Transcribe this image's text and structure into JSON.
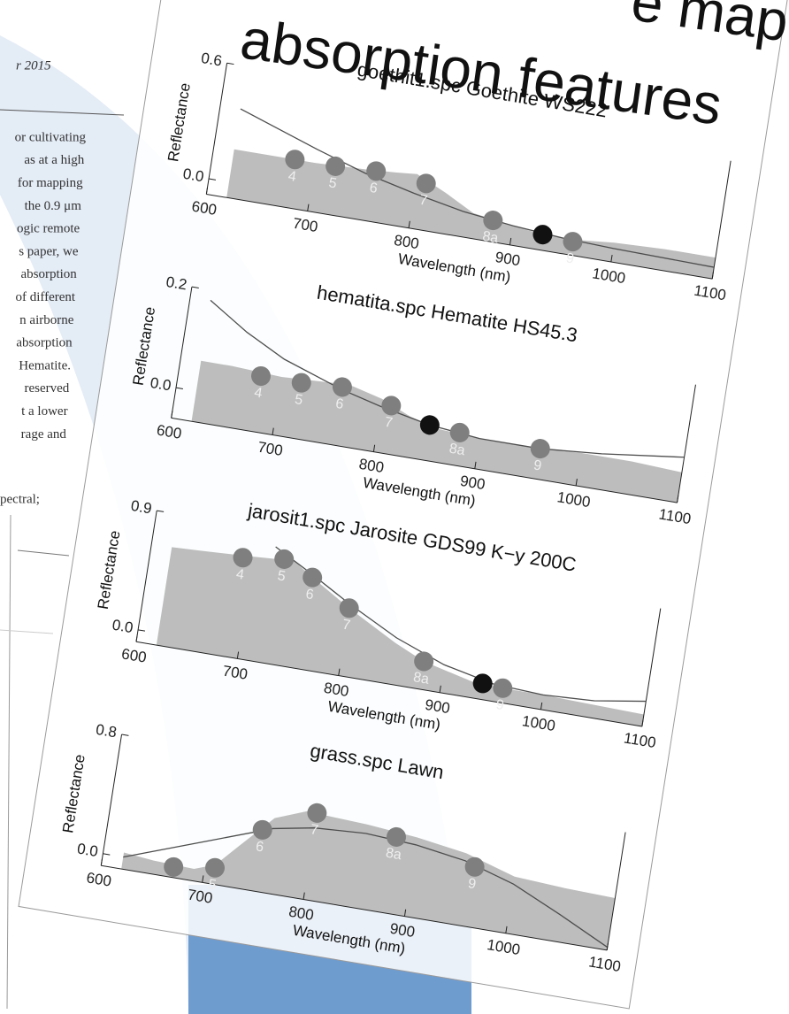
{
  "slide_title": {
    "lines": [
      "e map",
      "absorption features"
    ]
  },
  "paper": {
    "running_head": "r 2015",
    "lines": [
      "or cultivating",
      "as at a high",
      "for mapping",
      "the 0.9 μm",
      "ogic remote",
      "s paper, we",
      "absorption",
      "of different",
      "n airborne",
      "absorption",
      "Hematite.",
      "reserved",
      "t a lower",
      "rage and"
    ],
    "footer_line": "pectral;"
  },
  "chart_data": [
    {
      "type": "area",
      "title": "goethit1.spc Goethite WS222",
      "xlabel": "Wavelength (nm)",
      "ylabel": "Reflectance",
      "xlim": [
        600,
        1100
      ],
      "xticks": [
        600,
        700,
        800,
        900,
        1000,
        1100
      ],
      "ylim": [
        -0.08,
        0.6
      ],
      "yticks": [
        {
          "value": 0,
          "label": "0.0"
        },
        0.6
      ],
      "spectrum": {
        "color": "#bdbdbd",
        "x": [
          620,
          650,
          700,
          750,
          780,
          800,
          830,
          860,
          900,
          930,
          960,
          1000,
          1050,
          1100
        ],
        "values": [
          0.17,
          0.17,
          0.17,
          0.18,
          0.19,
          0.2,
          0.13,
          0.05,
          0.02,
          0.0,
          0.0,
          0.02,
          0.03,
          0.03
        ]
      },
      "fit": {
        "color": "#4d4d4d",
        "x": [
          620,
          660,
          700,
          750,
          800,
          850,
          900,
          950,
          1000,
          1100
        ],
        "values": [
          0.38,
          0.31,
          0.24,
          0.16,
          0.1,
          0.05,
          0.02,
          0.0,
          -0.01,
          -0.02
        ]
      },
      "points": {
        "x": [
          680,
          720,
          760,
          810,
          880,
          930,
          960
        ],
        "values": [
          0.17,
          0.17,
          0.18,
          0.16,
          0.03,
          0.0,
          -0.01
        ],
        "labels": [
          "4",
          "5",
          "6",
          "7",
          "8a",
          null,
          "9"
        ],
        "colors": [
          "#7f7f7f",
          "#7f7f7f",
          "#7f7f7f",
          "#7f7f7f",
          "#7f7f7f",
          "#111111",
          "#7f7f7f"
        ]
      }
    },
    {
      "type": "area",
      "title": "hematita.spc Hematite HS45.3",
      "xlabel": "Wavelength (nm)",
      "ylabel": "Reflectance",
      "xlim": [
        600,
        1100
      ],
      "xticks": [
        600,
        700,
        800,
        900,
        1000,
        1100
      ],
      "ylim": [
        -0.06,
        0.2
      ],
      "yticks": [
        {
          "value": 0,
          "label": "0.0"
        },
        0.2
      ],
      "spectrum": {
        "color": "#bdbdbd",
        "x": [
          620,
          650,
          700,
          750,
          770,
          800,
          830,
          860,
          900,
          950,
          1000,
          1050,
          1100
        ],
        "values": [
          0.06,
          0.06,
          0.055,
          0.06,
          0.06,
          0.045,
          0.02,
          0.005,
          0.0,
          0.0,
          0.005,
          0.005,
          0.0
        ]
      },
      "fit": {
        "color": "#4d4d4d",
        "x": [
          620,
          660,
          700,
          760,
          800,
          850,
          900,
          960,
          1020,
          1100
        ],
        "values": [
          0.18,
          0.13,
          0.09,
          0.05,
          0.03,
          0.01,
          0.0,
          0.0,
          0.01,
          0.03
        ]
      },
      "points": {
        "x": [
          680,
          720,
          760,
          810,
          850,
          880,
          960
        ],
        "values": [
          0.05,
          0.05,
          0.055,
          0.035,
          0.01,
          0.005,
          0.0
        ],
        "labels": [
          "4",
          "5",
          "6",
          "7",
          null,
          "8a",
          "9"
        ],
        "colors": [
          "#7f7f7f",
          "#7f7f7f",
          "#7f7f7f",
          "#7f7f7f",
          "#111111",
          "#7f7f7f",
          "#7f7f7f"
        ]
      }
    },
    {
      "type": "area",
      "title": "jarosit1.spc Jarosite GDS99 K−y 200C",
      "xlabel": "Wavelength (nm)",
      "ylabel": "Reflectance",
      "xlim": [
        600,
        1100
      ],
      "xticks": [
        600,
        700,
        800,
        900,
        1000,
        1100
      ],
      "ylim": [
        -0.09,
        0.9
      ],
      "yticks": [
        {
          "value": 0,
          "label": "0.0"
        },
        0.9
      ],
      "spectrum": {
        "color": "#bdbdbd",
        "x": [
          620,
          650,
          700,
          740,
          760,
          800,
          850,
          880,
          930,
          960,
          1000,
          1050,
          1100
        ],
        "values": [
          0.65,
          0.66,
          0.68,
          0.7,
          0.6,
          0.42,
          0.22,
          0.12,
          0.03,
          0.02,
          0.02,
          0.01,
          0.0
        ]
      },
      "fit": {
        "color": "#4d4d4d",
        "x": [
          720,
          760,
          800,
          850,
          900,
          950,
          1000,
          1050,
          1100
        ],
        "values": [
          0.78,
          0.62,
          0.45,
          0.26,
          0.12,
          0.04,
          0.02,
          0.04,
          0.1
        ]
      },
      "points": {
        "x": [
          690,
          730,
          760,
          800,
          880,
          940,
          960
        ],
        "values": [
          0.66,
          0.7,
          0.6,
          0.42,
          0.12,
          0.03,
          0.02
        ],
        "labels": [
          "4",
          "5",
          "6",
          "7",
          "8a",
          null,
          "9"
        ],
        "colors": [
          "#7f7f7f",
          "#7f7f7f",
          "#7f7f7f",
          "#7f7f7f",
          "#7f7f7f",
          "#111111",
          "#7f7f7f"
        ]
      }
    },
    {
      "type": "area",
      "title": "grass.spc Lawn",
      "xlabel": "Wavelength (nm)",
      "ylabel": "Reflectance",
      "xlim": [
        600,
        1100
      ],
      "xticks": [
        600,
        700,
        800,
        900,
        1000,
        1100
      ],
      "ylim": [
        -0.08,
        0.8
      ],
      "yticks": [
        {
          "value": 0,
          "label": "0.0"
        },
        0.8
      ],
      "spectrum": {
        "color": "#bdbdbd",
        "x": [
          620,
          650,
          690,
          710,
          730,
          760,
          790,
          850,
          900,
          950,
          1000,
          1050,
          1100
        ],
        "values": [
          0.03,
          0.01,
          0.0,
          0.05,
          0.2,
          0.42,
          0.5,
          0.48,
          0.45,
          0.4,
          0.3,
          0.28,
          0.27
        ]
      },
      "fit": {
        "color": "#4d4d4d",
        "x": [
          620,
          700,
          760,
          800,
          850,
          900,
          950,
          1000,
          1050,
          1100
        ],
        "values": [
          0.0,
          0.2,
          0.35,
          0.4,
          0.42,
          0.4,
          0.35,
          0.25,
          0.1,
          -0.06
        ]
      },
      "points": {
        "x": [
          670,
          710,
          750,
          800,
          880,
          960
        ],
        "values": [
          -0.01,
          0.03,
          0.33,
          0.5,
          0.43,
          0.32
        ],
        "labels": [
          null,
          "5",
          "6",
          "7",
          "8a",
          "9"
        ],
        "colors": [
          "#7f7f7f",
          "#7f7f7f",
          "#7f7f7f",
          "#7f7f7f",
          "#7f7f7f",
          "#7f7f7f"
        ]
      }
    }
  ]
}
